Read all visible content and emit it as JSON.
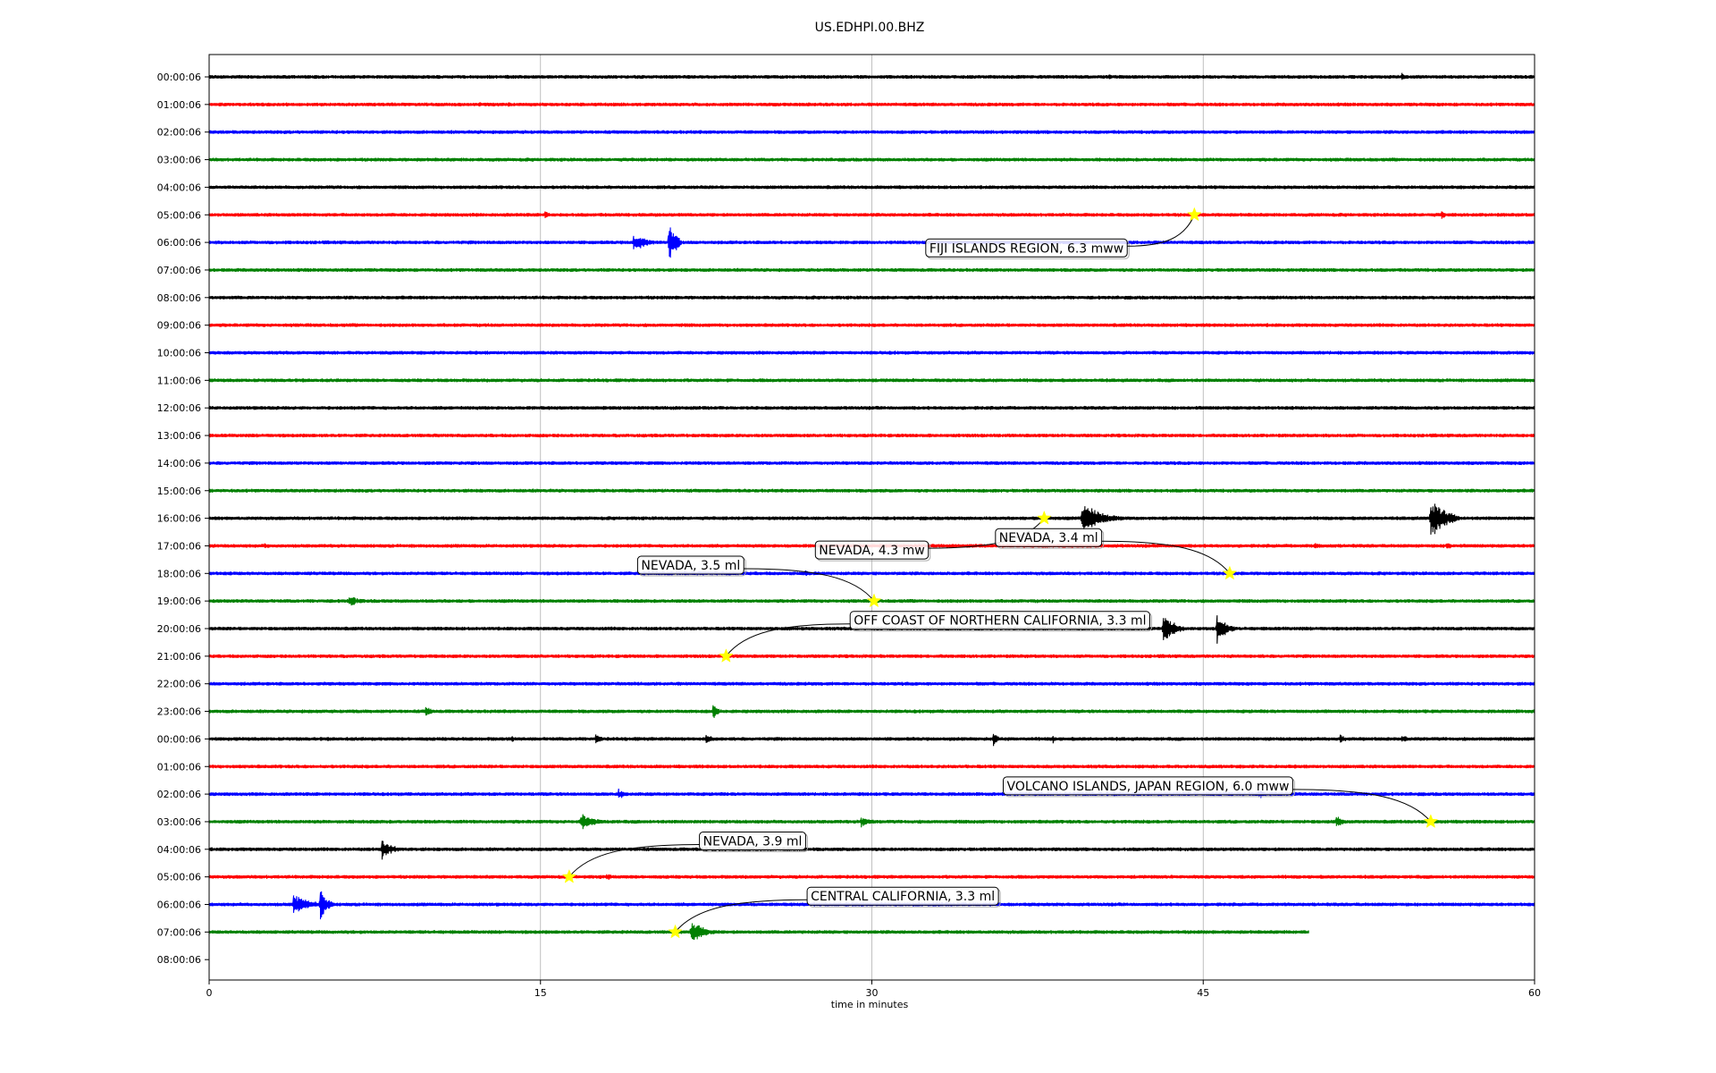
{
  "chart_data": {
    "type": "line",
    "title": "US.EDHPI.00.BHZ",
    "xlabel": "time in minutes",
    "ylabel": "",
    "xlim": [
      0,
      60
    ],
    "x_ticks": [
      0,
      15,
      30,
      45,
      60
    ],
    "vertical_grid_at": [
      15,
      30,
      45
    ],
    "trace_colors": [
      "#000000",
      "#ff0000",
      "#0000ff",
      "#008000"
    ],
    "last_trace_end_minute": 49.8,
    "row_labels": [
      "00:00:06",
      "01:00:06",
      "02:00:06",
      "03:00:06",
      "04:00:06",
      "05:00:06",
      "06:00:06",
      "07:00:06",
      "08:00:06",
      "09:00:06",
      "10:00:06",
      "11:00:06",
      "12:00:06",
      "13:00:06",
      "14:00:06",
      "15:00:06",
      "16:00:06",
      "17:00:06",
      "18:00:06",
      "19:00:06",
      "20:00:06",
      "21:00:06",
      "22:00:06",
      "23:00:06",
      "00:00:06",
      "01:00:06",
      "02:00:06",
      "03:00:06",
      "04:00:06",
      "05:00:06",
      "06:00:06",
      "07:00:06",
      "08:00:06"
    ],
    "bursts": [
      {
        "row": 0,
        "minute": 40.7,
        "amp": 6,
        "dur": 0.1
      },
      {
        "row": 0,
        "minute": 54.0,
        "amp": 6,
        "dur": 0.3
      },
      {
        "row": 1,
        "minute": 12.2,
        "amp": 4,
        "dur": 0.3
      },
      {
        "row": 1,
        "minute": 13.5,
        "amp": 5,
        "dur": 0.3
      },
      {
        "row": 5,
        "minute": 15.2,
        "amp": 6,
        "dur": 0.3
      },
      {
        "row": 5,
        "minute": 55.8,
        "amp": 6,
        "dur": 0.3
      },
      {
        "row": 6,
        "minute": 19.2,
        "amp": 12,
        "dur": 1.2
      },
      {
        "row": 6,
        "minute": 20.8,
        "amp": 30,
        "dur": 0.6
      },
      {
        "row": 16,
        "minute": 39.5,
        "amp": 20,
        "dur": 2.0
      },
      {
        "row": 16,
        "minute": 55.3,
        "amp": 28,
        "dur": 1.3
      },
      {
        "row": 17,
        "minute": 2.5,
        "amp": 4,
        "dur": 0.5
      },
      {
        "row": 17,
        "minute": 50.0,
        "amp": 5,
        "dur": 1.0
      },
      {
        "row": 17,
        "minute": 56.0,
        "amp": 6,
        "dur": 0.5
      },
      {
        "row": 18,
        "minute": 27.0,
        "amp": 4,
        "dur": 0.5
      },
      {
        "row": 19,
        "minute": 6.3,
        "amp": 8,
        "dur": 1.0
      },
      {
        "row": 20,
        "minute": 43.2,
        "amp": 20,
        "dur": 1.0
      },
      {
        "row": 20,
        "minute": 45.6,
        "amp": 22,
        "dur": 0.8
      },
      {
        "row": 23,
        "minute": 9.8,
        "amp": 7,
        "dur": 0.6
      },
      {
        "row": 23,
        "minute": 22.8,
        "amp": 12,
        "dur": 0.4
      },
      {
        "row": 24,
        "minute": 13.7,
        "amp": 5,
        "dur": 0.3
      },
      {
        "row": 24,
        "minute": 17.5,
        "amp": 8,
        "dur": 0.4
      },
      {
        "row": 24,
        "minute": 22.5,
        "amp": 8,
        "dur": 0.5
      },
      {
        "row": 24,
        "minute": 35.5,
        "amp": 10,
        "dur": 0.3
      },
      {
        "row": 24,
        "minute": 38.2,
        "amp": 6,
        "dur": 0.2
      },
      {
        "row": 24,
        "minute": 51.2,
        "amp": 7,
        "dur": 0.4
      },
      {
        "row": 24,
        "minute": 54.0,
        "amp": 7,
        "dur": 0.4
      },
      {
        "row": 26,
        "minute": 18.5,
        "amp": 7,
        "dur": 1.0
      },
      {
        "row": 26,
        "minute": 47.5,
        "amp": 6,
        "dur": 1.0
      },
      {
        "row": 27,
        "minute": 16.8,
        "amp": 10,
        "dur": 1.5
      },
      {
        "row": 27,
        "minute": 29.5,
        "amp": 8,
        "dur": 1.0
      },
      {
        "row": 27,
        "minute": 51.0,
        "amp": 10,
        "dur": 0.5
      },
      {
        "row": 28,
        "minute": 7.8,
        "amp": 14,
        "dur": 1.0
      },
      {
        "row": 29,
        "minute": 18.0,
        "amp": 5,
        "dur": 0.5
      },
      {
        "row": 30,
        "minute": 3.8,
        "amp": 14,
        "dur": 1.5
      },
      {
        "row": 30,
        "minute": 5.0,
        "amp": 26,
        "dur": 0.6
      },
      {
        "row": 31,
        "minute": 21.8,
        "amp": 14,
        "dur": 1.5
      }
    ],
    "events": [
      {
        "label": "FIJI ISLANDS REGION, 6.3 mww",
        "minute": 44.6,
        "row": 5,
        "label_minute": 37.0,
        "label_row": 6.2
      },
      {
        "label": "NEVADA, 4.3 mw",
        "minute": 37.8,
        "row": 16,
        "label_minute": 30.0,
        "label_row": 17.15
      },
      {
        "label": "NEVADA, 3.4 ml",
        "minute": 46.2,
        "row": 18,
        "label_minute": 38.0,
        "label_row": 16.7
      },
      {
        "label": "NEVADA, 3.5 ml",
        "minute": 30.1,
        "row": 19,
        "label_minute": 21.8,
        "label_row": 17.7
      },
      {
        "label": "OFF COAST OF NORTHERN CALIFORNIA, 3.3 ml",
        "minute": 23.4,
        "row": 21,
        "label_minute": 35.8,
        "label_row": 19.7
      },
      {
        "label": "VOLCANO ISLANDS, JAPAN REGION, 6.0 mww",
        "minute": 55.3,
        "row": 27,
        "label_minute": 42.5,
        "label_row": 25.7
      },
      {
        "label": "NEVADA, 3.9 ml",
        "minute": 16.3,
        "row": 29,
        "label_minute": 24.6,
        "label_row": 27.7
      },
      {
        "label": "CENTRAL CALIFORNIA, 3.3 ml",
        "minute": 21.1,
        "row": 31,
        "label_minute": 31.4,
        "label_row": 29.7
      }
    ]
  }
}
